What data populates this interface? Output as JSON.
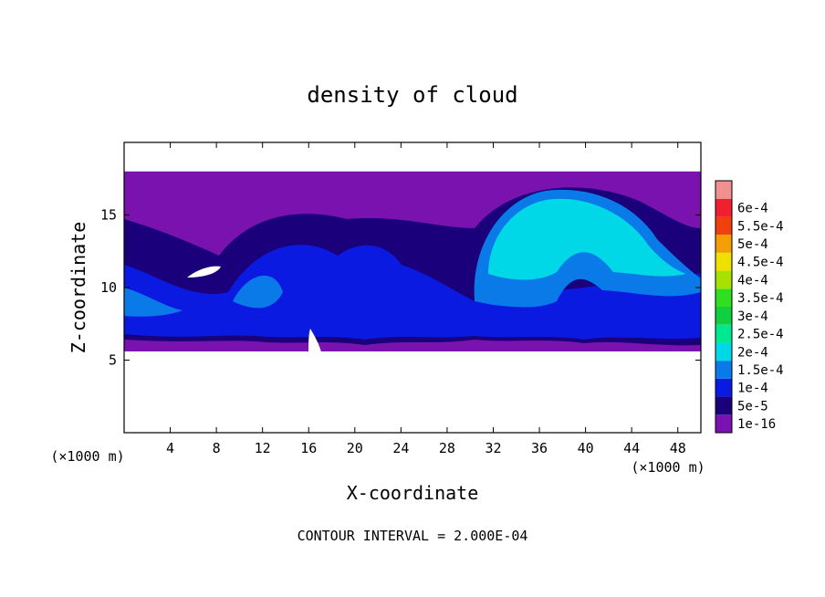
{
  "chart_data": {
    "type": "heatmap",
    "title": "density of cloud",
    "xlabel": "X-coordinate",
    "ylabel": "Z-coordinate",
    "x_unit": "(×1000 m)",
    "y_unit": "(×1000 m)",
    "xlim": [
      0,
      50
    ],
    "ylim": [
      0,
      20
    ],
    "x_ticks": [
      4,
      8,
      12,
      16,
      20,
      24,
      28,
      32,
      36,
      40,
      44,
      48
    ],
    "y_ticks": [
      5,
      10,
      15
    ],
    "footnote": "CONTOUR INTERVAL = 2.000E-04",
    "colorbar": {
      "levels": [
        "1e-16",
        "5e-5",
        "1e-4",
        "1.5e-4",
        "2e-4",
        "2.5e-4",
        "3e-4",
        "3.5e-4",
        "4e-4",
        "4.5e-4",
        "5e-4",
        "5.5e-4",
        "6e-4"
      ],
      "colors": [
        "#7a12b0",
        "#1a007a",
        "#0a1ae0",
        "#0a7ae8",
        "#00d8e8",
        "#00e890",
        "#10d040",
        "#30e020",
        "#a8e000",
        "#f0e000",
        "#f0a000",
        "#f04010",
        "#f02030",
        "#f09090"
      ]
    },
    "cloud_layer_z": [
      5.6,
      18
    ],
    "regions": [
      {
        "label": "purple base",
        "level": "1e-16"
      },
      {
        "label": "dark blue body",
        "level": "5e-5"
      },
      {
        "label": "blue core",
        "level": "1e-4"
      },
      {
        "label": "light blue",
        "level": "1.5e-4"
      },
      {
        "label": "cyan dome",
        "level": "2e-4"
      }
    ]
  }
}
